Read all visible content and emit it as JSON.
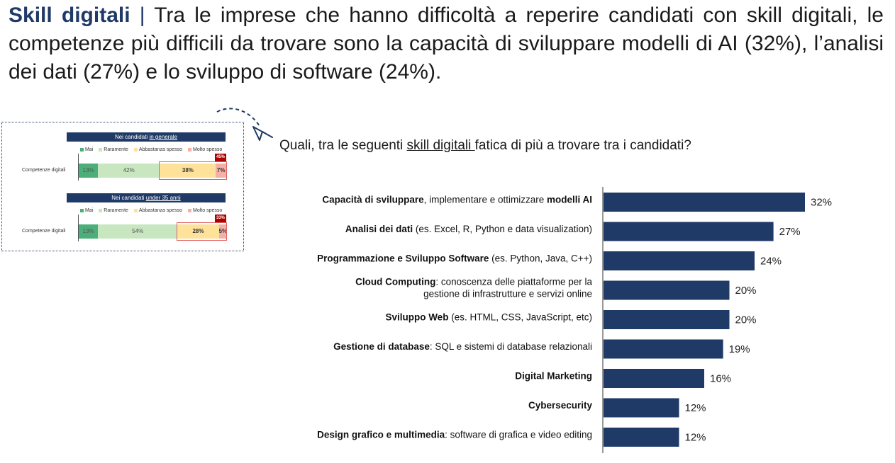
{
  "headline": {
    "bold": "Skill digitali",
    "separator": "|",
    "text": "Tra le imprese che hanno difficoltà a reperire candidati con skill digitali, le competenze più difficili da trovare sono la capacità di sviluppare modelli di AI (32%), l’analisi dei dati (27%) e lo sviluppo di software (24%)."
  },
  "question": {
    "before": "Quali, tra le seguenti ",
    "underlined": "skill digitali ",
    "after": "fatica di più a trovare tra i candidati?"
  },
  "mini_panel": {
    "legend": [
      "Mai",
      "Raramente",
      "Abbastanza spesso",
      "Molto spesso"
    ],
    "colors": [
      "#4caf7a",
      "#c8e6c0",
      "#ffe29a",
      "#f4b0a8"
    ],
    "row_label": "Competenze digitali",
    "blocks": [
      {
        "header_plain": "Nei candidati ",
        "header_underlined": "in generale",
        "values": [
          13,
          42,
          38,
          7
        ],
        "labels": [
          "13%",
          "42%",
          "38%",
          "7%"
        ],
        "tag": "45%"
      },
      {
        "header_plain": "Nei candidati ",
        "header_underlined": "under 35 anni",
        "values": [
          13,
          54,
          28,
          5
        ],
        "labels": [
          "13%",
          "54%",
          "28%",
          "5%"
        ],
        "tag": "33%"
      }
    ]
  },
  "chart_data": {
    "type": "bar",
    "orientation": "horizontal",
    "bar_color": "#1f3a66",
    "xlim": [
      0,
      32
    ],
    "categories": [
      {
        "bold": "Capacità di sviluppare",
        "plain": ", implementare e ottimizzare ",
        "bold2": "modelli AI",
        "plain2": ""
      },
      {
        "bold": "Analisi dei dati",
        "plain": " (es. Excel, R, Python e data visualization)",
        "bold2": "",
        "plain2": ""
      },
      {
        "bold": "Programmazione e Sviluppo Software",
        "plain": " (es. Python, Java, C++)",
        "bold2": "",
        "plain2": ""
      },
      {
        "bold": "Cloud Computing",
        "plain": ": conoscenza delle piattaforme per la",
        "bold2": "",
        "plain2": "gestione di infrastrutture e servizi online"
      },
      {
        "bold": "Sviluppo Web",
        "plain": " (es. HTML, CSS, JavaScript, etc)",
        "bold2": "",
        "plain2": ""
      },
      {
        "bold": "Gestione di database",
        "plain": ": SQL e sistemi di database relazionali",
        "bold2": "",
        "plain2": ""
      },
      {
        "bold": "Digital Marketing",
        "plain": "",
        "bold2": "",
        "plain2": ""
      },
      {
        "bold": "Cybersecurity",
        "plain": "",
        "bold2": "",
        "plain2": ""
      },
      {
        "bold": "Design grafico e multimedia",
        "plain": ": software di grafica e video editing",
        "bold2": "",
        "plain2": ""
      }
    ],
    "values": [
      32,
      27,
      24,
      20,
      20,
      19,
      16,
      12,
      12
    ],
    "value_labels": [
      "32%",
      "27%",
      "24%",
      "20%",
      "20%",
      "19%",
      "16%",
      "12%",
      "12%"
    ]
  }
}
